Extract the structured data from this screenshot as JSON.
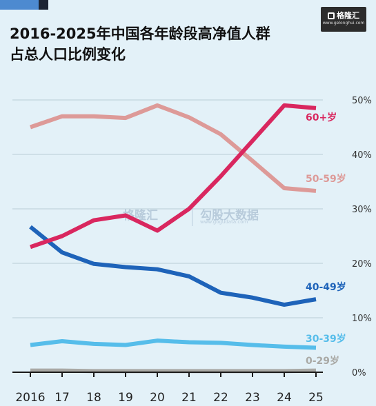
{
  "title_lines": [
    "2016-2025年中国各年龄段高净值人群",
    "占总人口比例变化"
  ],
  "brand": {
    "name": "格隆汇",
    "url": "www.gelonghui.com"
  },
  "watermark": {
    "left": "格隆汇",
    "right": "勾股大数据",
    "url": "www.gogudata.com"
  },
  "colors": {
    "background": "#e3f1f8",
    "grid": "#b9cdd6",
    "axis": "#1a1a1a"
  },
  "chart_data": {
    "type": "line",
    "title": "2016-2025年中国各年龄段高净值人群占总人口比例变化",
    "categories": [
      "2016",
      "17",
      "18",
      "19",
      "20",
      "21",
      "22",
      "23",
      "24",
      "25"
    ],
    "y_axis": {
      "min": 0,
      "max": 50,
      "ticks": [
        0,
        10,
        20,
        30,
        40,
        50
      ],
      "tick_labels": [
        "0%",
        "10%",
        "20%",
        "30%",
        "40%",
        "50%"
      ],
      "position": "right"
    },
    "grid": true,
    "series": [
      {
        "name": "0-29岁",
        "color": "#a9a9a5",
        "values": [
          0.3,
          0.3,
          0.2,
          0.2,
          0.2,
          0.2,
          0.2,
          0.2,
          0.2,
          0.3
        ]
      },
      {
        "name": "30-39岁",
        "color": "#56bdea",
        "values": [
          5.0,
          5.7,
          5.2,
          5.0,
          5.8,
          5.5,
          5.4,
          5.0,
          4.7,
          4.5
        ]
      },
      {
        "name": "40-49岁",
        "color": "#1e63b9",
        "values": [
          26.7,
          22.0,
          19.9,
          19.3,
          18.9,
          17.6,
          14.6,
          13.7,
          12.4,
          13.4
        ]
      },
      {
        "name": "50-59岁",
        "color": "#dd9a98",
        "values": [
          45.0,
          47.0,
          47.0,
          46.7,
          49.0,
          46.8,
          43.7,
          38.8,
          33.8,
          33.3
        ]
      },
      {
        "name": "60+岁",
        "color": "#d9275f",
        "values": [
          23.0,
          25.0,
          27.9,
          28.8,
          26.0,
          30.0,
          36.0,
          42.5,
          49.0,
          48.5
        ]
      }
    ]
  }
}
